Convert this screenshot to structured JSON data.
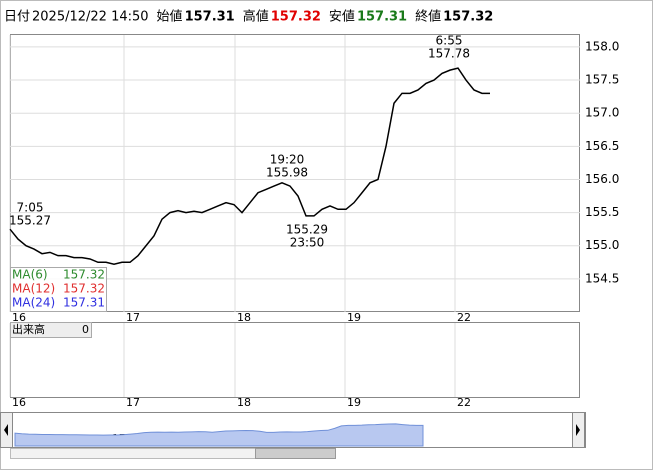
{
  "header": {
    "items": [
      {
        "label": "日付",
        "value": "2025/12/22 14:50"
      },
      {
        "label": "始値",
        "value": "157.31"
      },
      {
        "label": "高値",
        "value": "157.32"
      },
      {
        "label": "安値",
        "value": "157.31"
      },
      {
        "label": "終値",
        "value": "157.32"
      }
    ]
  },
  "chart_data": {
    "type": "line",
    "color": "#000000",
    "values": [
      155.25,
      155.1,
      155.0,
      154.95,
      154.88,
      154.9,
      154.85,
      154.85,
      154.82,
      154.82,
      154.8,
      154.75,
      154.75,
      154.72,
      154.75,
      154.75,
      154.85,
      155.0,
      155.15,
      155.4,
      155.5,
      155.53,
      155.5,
      155.52,
      155.5,
      155.55,
      155.6,
      155.65,
      155.62,
      155.5,
      155.65,
      155.8,
      155.85,
      155.9,
      155.95,
      155.9,
      155.75,
      155.45,
      155.45,
      155.55,
      155.6,
      155.55,
      155.55,
      155.65,
      155.8,
      155.95,
      156.0,
      156.5,
      157.15,
      157.3,
      157.3,
      157.35,
      157.45,
      157.5,
      157.6,
      157.65,
      157.68,
      157.5,
      157.35,
      157.3,
      157.3
    ],
    "xlim": [
      0,
      71.25
    ],
    "xticks": [
      {
        "value": 0,
        "label": "16"
      },
      {
        "value": 14.25,
        "label": "17"
      },
      {
        "value": 28.125,
        "label": "18"
      },
      {
        "value": 41.875,
        "label": "19"
      },
      {
        "value": 55.625,
        "label": "22"
      }
    ],
    "ylim": [
      154.0,
      158.18
    ],
    "yticks": [
      154.5,
      {
        "value": 155.0,
        "label": "155.0"
      },
      155.5,
      {
        "value": 156.0,
        "label": "156.0"
      },
      156.5,
      {
        "value": 157.0,
        "label": "157.0"
      },
      157.5,
      {
        "value": 158.0,
        "label": "158.0"
      }
    ],
    "grid": true,
    "legend": [
      {
        "name": "MA(6)",
        "color": "#2e8b2e",
        "value": 157.32
      },
      {
        "name": "MA(12)",
        "color": "#e03030",
        "value": 157.32
      },
      {
        "name": "MA(24)",
        "color": "#3030e0",
        "value": 157.31
      }
    ],
    "annotations": [
      {
        "time": "7:05",
        "price": 155.27,
        "place": "above"
      },
      {
        "time": "19:20",
        "price": 155.98,
        "place": "above"
      },
      {
        "time": "23:50",
        "price": 155.29,
        "place": "below"
      },
      {
        "time": "6:55",
        "price": 157.78,
        "place": "above"
      }
    ],
    "volume": {
      "label": "出来高",
      "value": 0
    }
  }
}
